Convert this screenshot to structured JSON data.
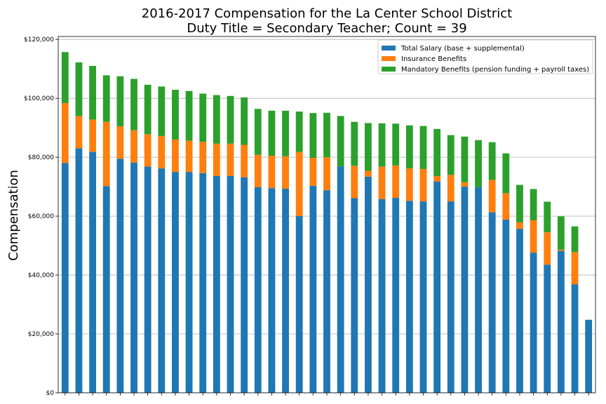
{
  "chart_data": {
    "type": "bar",
    "stacked": true,
    "title": "2016-2017 Compensation for the La Center School District",
    "subtitle": "Duty Title = Secondary Teacher; Count = 39",
    "xlabel": "",
    "ylabel": "Compensation",
    "ylim": [
      0,
      121000
    ],
    "yticks": [
      0,
      20000,
      40000,
      60000,
      80000,
      100000,
      120000
    ],
    "ytick_labels": [
      "$0",
      "$20,000",
      "$40,000",
      "$60,000",
      "$80,000",
      "$100,000",
      "$120,000"
    ],
    "grid": "horizontal",
    "legend_position": "top-right",
    "series": [
      {
        "name": "Total Salary (base + supplemental)",
        "color": "#1f77b4",
        "values": [
          78000,
          83000,
          81800,
          70200,
          79500,
          78200,
          76800,
          76200,
          75000,
          75000,
          74600,
          73600,
          73600,
          73200,
          69800,
          69500,
          69300,
          60000,
          70300,
          68800,
          76900,
          66100,
          73400,
          65800,
          66200,
          65200,
          65000,
          71700,
          65000,
          70000,
          69800,
          61300,
          58800,
          55700,
          47600,
          43500,
          48200,
          36800,
          24800
        ]
      },
      {
        "name": "Insurance Benefits",
        "color": "#ff7f0e",
        "values": [
          20400,
          11000,
          11000,
          21800,
          11000,
          11000,
          11000,
          11000,
          11000,
          10600,
          10600,
          11000,
          11000,
          11000,
          11000,
          11000,
          11000,
          21800,
          9500,
          11200,
          0,
          11000,
          2000,
          11000,
          11000,
          11000,
          11000,
          1900,
          9000,
          1500,
          0,
          11000,
          9000,
          2200,
          11000,
          11000,
          400,
          11000,
          0
        ]
      },
      {
        "name": "Mandatory Benefits (pension funding + payroll taxes)",
        "color": "#2ca02c",
        "values": [
          17300,
          18200,
          18200,
          15800,
          17000,
          17400,
          16800,
          16800,
          16900,
          16900,
          16400,
          16500,
          16200,
          16100,
          15600,
          15300,
          15500,
          13700,
          15200,
          15100,
          17100,
          14900,
          16200,
          14700,
          14200,
          14600,
          14600,
          16000,
          13500,
          15500,
          16000,
          12800,
          13500,
          12700,
          10600,
          10400,
          11300,
          8700,
          0
        ]
      }
    ]
  }
}
